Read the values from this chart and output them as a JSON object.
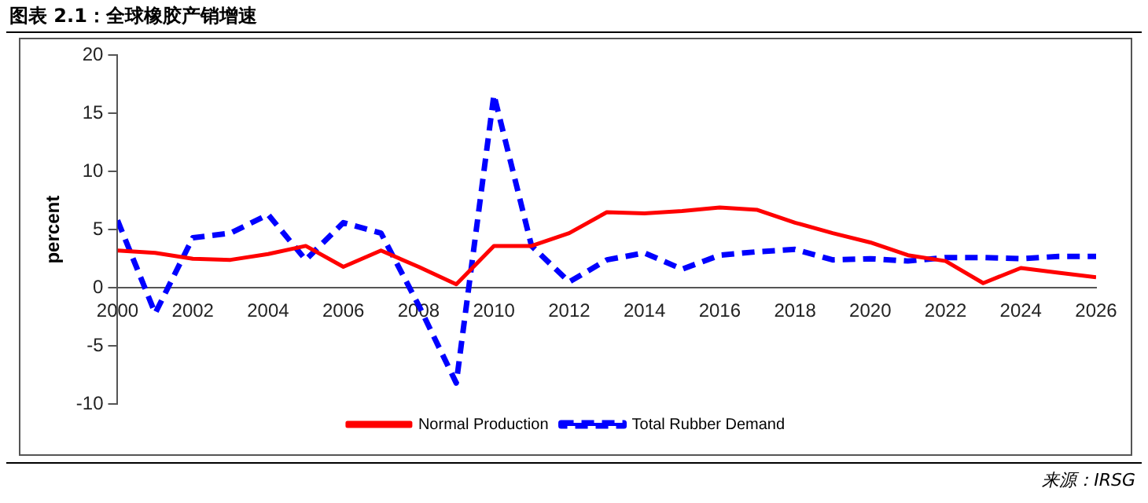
{
  "chart_data": {
    "type": "line",
    "title": "图表 2.1：全球橡胶产销增速",
    "ylabel": "percent",
    "annotations": [
      "来源：IRSG"
    ],
    "x": [
      2000,
      2001,
      2002,
      2003,
      2004,
      2005,
      2006,
      2007,
      2008,
      2009,
      2010,
      2011,
      2012,
      2013,
      2014,
      2015,
      2016,
      2017,
      2018,
      2019,
      2020,
      2021,
      2022,
      2023,
      2024,
      2025,
      2026
    ],
    "series": [
      {
        "name": "Normal Production",
        "color": "#ff0000",
        "line_style": "solid",
        "values": [
          3.2,
          3.0,
          2.5,
          2.4,
          2.9,
          3.6,
          1.8,
          3.2,
          1.8,
          0.3,
          3.6,
          3.6,
          4.7,
          6.5,
          6.4,
          6.6,
          6.9,
          6.7,
          5.6,
          4.7,
          3.9,
          2.8,
          2.3,
          0.4,
          1.7,
          1.3,
          0.9
        ]
      },
      {
        "name": "Total Rubber Demand",
        "color": "#0000ff",
        "line_style": "dashed",
        "values": [
          5.8,
          -2.2,
          4.3,
          4.7,
          6.3,
          2.4,
          5.6,
          4.7,
          -1.5,
          -8.2,
          16.6,
          3.6,
          0.5,
          2.4,
          3.0,
          1.6,
          2.8,
          3.1,
          3.3,
          2.4,
          2.5,
          2.3,
          2.6,
          2.6,
          2.5,
          2.7,
          2.7
        ]
      }
    ],
    "xlim": [
      2000,
      2026
    ],
    "xticks": [
      2000,
      2002,
      2004,
      2006,
      2008,
      2010,
      2012,
      2014,
      2016,
      2018,
      2020,
      2022,
      2024,
      2026
    ],
    "ylim": [
      -10,
      20
    ],
    "yticks": [
      -10,
      -5,
      0,
      5,
      10,
      15,
      20
    ],
    "grid": false,
    "legend": "bottom",
    "marker": "none"
  }
}
